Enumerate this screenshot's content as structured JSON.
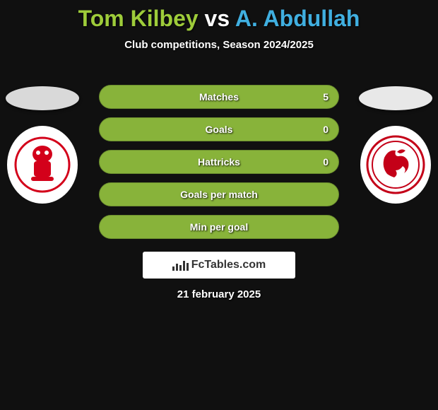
{
  "title": {
    "player1": "Tom Kilbey",
    "vs": "vs",
    "player2": "A. Abdullah",
    "player1_color": "#9ecc3a",
    "vs_color": "#ffffff",
    "player2_color": "#40afe0"
  },
  "subtitle": "Club competitions, Season 2024/2025",
  "left": {
    "photo_bg": "#d9d9d9",
    "club_bg": "#ffffff",
    "club_accent": "#d3001a"
  },
  "right": {
    "photo_bg": "#e8e8e8",
    "club_bg": "#ffffff",
    "club_accent": "#c40018"
  },
  "stats": {
    "row_bg": "#88b33a",
    "row_border": "#6a8c2e",
    "rows": [
      {
        "label": "Matches",
        "left": "",
        "right": "5"
      },
      {
        "label": "Goals",
        "left": "",
        "right": "0"
      },
      {
        "label": "Hattricks",
        "left": "",
        "right": "0"
      },
      {
        "label": "Goals per match",
        "left": "",
        "right": ""
      },
      {
        "label": "Min per goal",
        "left": "",
        "right": ""
      }
    ]
  },
  "branding": "FcTables.com",
  "date": "21 february 2025"
}
